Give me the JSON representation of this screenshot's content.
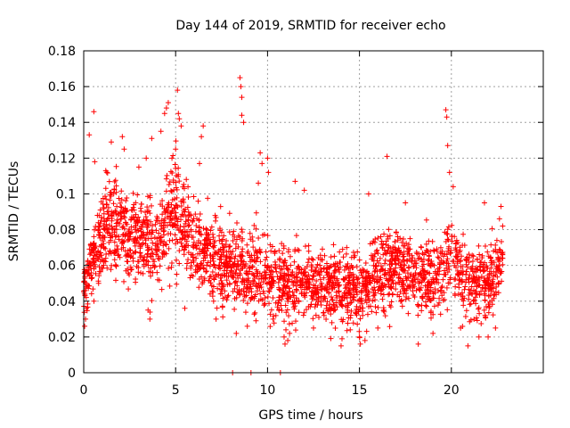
{
  "chart_data": {
    "type": "scatter",
    "title": "Day 144 of 2019, SRMTID for receiver echo",
    "xlabel": "GPS time / hours",
    "ylabel": "SRMTID / TECUs",
    "xlim": [
      0,
      25
    ],
    "ylim": [
      0,
      0.18
    ],
    "x_ticks": [
      0,
      5,
      10,
      15,
      20
    ],
    "x_tick_labels": [
      "0",
      "5",
      "10",
      "15",
      "20"
    ],
    "y_ticks": [
      0,
      0.02,
      0.04,
      0.06,
      0.08,
      0.1,
      0.12,
      0.14,
      0.16,
      0.18
    ],
    "y_tick_labels": [
      "0",
      "0.02",
      "0.04",
      "0.06",
      "0.08",
      "0.1",
      "0.12",
      "0.14",
      "0.16",
      "0.18"
    ],
    "grid": true,
    "marker": "plus",
    "series": [
      {
        "name": "SRMTID",
        "color": "#ff0000",
        "trend": {
          "x": [
            0.0,
            0.3,
            1.0,
            1.5,
            2.0,
            3.0,
            4.0,
            4.5,
            5.0,
            5.5,
            6.0,
            7.0,
            8.0,
            9.0,
            10.0,
            11.0,
            12.0,
            13.0,
            14.0,
            15.0,
            16.0,
            17.0,
            18.0,
            19.0,
            19.7,
            20.0,
            20.5,
            21.0,
            22.0,
            22.8
          ],
          "center": [
            0.045,
            0.06,
            0.075,
            0.085,
            0.08,
            0.075,
            0.07,
            0.085,
            0.09,
            0.08,
            0.068,
            0.065,
            0.06,
            0.058,
            0.055,
            0.05,
            0.05,
            0.05,
            0.048,
            0.045,
            0.055,
            0.06,
            0.055,
            0.05,
            0.06,
            0.065,
            0.06,
            0.05,
            0.05,
            0.065
          ],
          "spread": [
            0.012,
            0.018,
            0.02,
            0.022,
            0.022,
            0.02,
            0.02,
            0.025,
            0.025,
            0.022,
            0.02,
            0.02,
            0.018,
            0.018,
            0.018,
            0.016,
            0.016,
            0.016,
            0.016,
            0.016,
            0.018,
            0.018,
            0.017,
            0.016,
            0.018,
            0.018,
            0.018,
            0.016,
            0.017,
            0.017
          ]
        },
        "highlights": [
          [
            0.3,
            0.133
          ],
          [
            0.55,
            0.146
          ],
          [
            0.6,
            0.118
          ],
          [
            1.5,
            0.129
          ],
          [
            2.1,
            0.132
          ],
          [
            2.2,
            0.125
          ],
          [
            3.4,
            0.12
          ],
          [
            3.7,
            0.131
          ],
          [
            4.2,
            0.135
          ],
          [
            4.4,
            0.145
          ],
          [
            4.5,
            0.148
          ],
          [
            4.6,
            0.151
          ],
          [
            5.1,
            0.158
          ],
          [
            5.15,
            0.145
          ],
          [
            5.2,
            0.142
          ],
          [
            5.3,
            0.138
          ],
          [
            5.0,
            0.125
          ],
          [
            6.5,
            0.138
          ],
          [
            6.4,
            0.132
          ],
          [
            8.5,
            0.165
          ],
          [
            8.55,
            0.16
          ],
          [
            8.6,
            0.154
          ],
          [
            8.6,
            0.144
          ],
          [
            8.7,
            0.14
          ],
          [
            9.6,
            0.123
          ],
          [
            9.7,
            0.117
          ],
          [
            10.0,
            0.12
          ],
          [
            10.05,
            0.112
          ],
          [
            11.5,
            0.107
          ],
          [
            16.5,
            0.121
          ],
          [
            19.7,
            0.147
          ],
          [
            19.75,
            0.143
          ],
          [
            19.8,
            0.127
          ],
          [
            19.9,
            0.112
          ],
          [
            20.1,
            0.104
          ],
          [
            3.0,
            0.115
          ],
          [
            1.2,
            0.113
          ],
          [
            6.3,
            0.117
          ],
          [
            4.8,
            0.12
          ],
          [
            9.5,
            0.106
          ],
          [
            12.0,
            0.102
          ],
          [
            15.5,
            0.1
          ],
          [
            17.5,
            0.095
          ],
          [
            21.8,
            0.095
          ],
          [
            22.7,
            0.093
          ]
        ],
        "lows": [
          [
            0.05,
            0.026
          ],
          [
            0.1,
            0.03
          ],
          [
            0.15,
            0.036
          ],
          [
            3.6,
            0.03
          ],
          [
            3.5,
            0.035
          ],
          [
            5.5,
            0.036
          ],
          [
            7.2,
            0.03
          ],
          [
            8.3,
            0.022
          ],
          [
            8.9,
            0.026
          ],
          [
            10.3,
            0.03
          ],
          [
            10.9,
            0.02
          ],
          [
            10.95,
            0.016
          ],
          [
            11.0,
            0.024
          ],
          [
            11.1,
            0.018
          ],
          [
            11.2,
            0.022
          ],
          [
            12.5,
            0.025
          ],
          [
            13.5,
            0.028
          ],
          [
            14.0,
            0.015
          ],
          [
            14.05,
            0.019
          ],
          [
            14.5,
            0.024
          ],
          [
            15.0,
            0.02
          ],
          [
            15.05,
            0.016
          ],
          [
            15.3,
            0.018
          ],
          [
            16.0,
            0.025
          ],
          [
            18.2,
            0.016
          ],
          [
            19.0,
            0.022
          ],
          [
            20.5,
            0.025
          ],
          [
            20.9,
            0.015
          ],
          [
            21.5,
            0.02
          ],
          [
            22.0,
            0.02
          ],
          [
            22.4,
            0.025
          ]
        ],
        "zeros": [
          [
            8.1,
            0.0
          ],
          [
            9.1,
            0.0
          ],
          [
            10.7,
            0.0
          ]
        ]
      }
    ]
  }
}
